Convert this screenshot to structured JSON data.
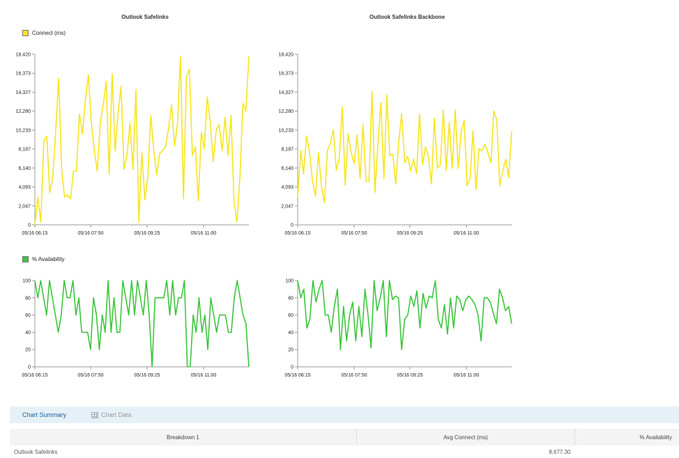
{
  "legend": {
    "connect": {
      "label": "Connect (ms)",
      "color": "#f7e51c"
    },
    "availability": {
      "label": "% Availability",
      "color": "#3cc53c"
    }
  },
  "tabs": {
    "summary": "Chart Summary",
    "data": "Chart Data",
    "data_icon": "table-grid-icon"
  },
  "summary_table": {
    "columns": [
      "Breakdown 1",
      "Avg Connect (ms)",
      "% Availability"
    ],
    "rows": [
      {
        "name": "Outlook Safelinks",
        "avg_connect": "8,677.30",
        "availability": ""
      }
    ]
  },
  "chart_data": [
    {
      "type": "line",
      "title": "Outlook Safelinks",
      "series": [
        {
          "name": "Connect (ms)",
          "color": "#f7e51c",
          "values": [
            0,
            3000,
            300,
            9000,
            9600,
            3500,
            5000,
            10000,
            15800,
            6000,
            3000,
            3200,
            2800,
            5800,
            5800,
            12000,
            9800,
            13500,
            16200,
            11000,
            8000,
            5800,
            11000,
            13000,
            15500,
            5500,
            16300,
            8000,
            12000,
            15000,
            6000,
            7500,
            11000,
            6000,
            14600,
            300,
            7800,
            2700,
            5200,
            11800,
            8000,
            5400,
            7700,
            8000,
            8500,
            10500,
            13000,
            8500,
            11000,
            18200,
            2800,
            16000,
            16800,
            7500,
            8400,
            2600,
            10000,
            8200,
            13800,
            11200,
            6800,
            10200,
            10800,
            8000,
            11600,
            7500,
            11800,
            2500,
            300,
            5200,
            13100,
            12300,
            18200
          ]
        }
      ],
      "x_ticks": [
        "05/16 06:15",
        "05/16 07:50",
        "05/16 09:25",
        "05/16 11:00"
      ],
      "y_ticks": [
        "0",
        "2,047",
        "4,093",
        "6,140",
        "8,187",
        "10,233",
        "12,280",
        "14,327",
        "16,373",
        "18,420"
      ],
      "ylim": [
        0,
        18420
      ],
      "grid": false,
      "legend": "top-left"
    },
    {
      "type": "line",
      "title": "Outlook Safelinks Backbone",
      "series": [
        {
          "name": "Connect (ms)",
          "color": "#f7e51c",
          "values": [
            3000,
            8000,
            5500,
            9600,
            7800,
            4700,
            3100,
            7800,
            4200,
            2400,
            8000,
            8800,
            10300,
            5900,
            7200,
            12700,
            4300,
            9800,
            7800,
            6600,
            9700,
            5000,
            10800,
            4700,
            4700,
            14400,
            3500,
            8800,
            13200,
            5000,
            14000,
            7500,
            7600,
            4400,
            9000,
            12000,
            6700,
            7400,
            5800,
            7100,
            5500,
            12000,
            6500,
            8400,
            7400,
            4400,
            11500,
            6100,
            6500,
            12400,
            5900,
            11100,
            6100,
            12400,
            6100,
            10000,
            11300,
            4200,
            5000,
            10200,
            3800,
            8200,
            8000,
            8700,
            7800,
            6700,
            12300,
            11300,
            4200,
            5800,
            7100,
            5100,
            10100
          ]
        }
      ],
      "x_ticks": [
        "05/16 06:15",
        "05/16 07:50",
        "05/16 09:25",
        "05/16 11:00"
      ],
      "y_ticks": [
        "0",
        "2,047",
        "4,093",
        "6,140",
        "8,187",
        "10,233",
        "12,280",
        "14,327",
        "16,373",
        "18,420"
      ],
      "ylim": [
        0,
        18420
      ],
      "grid": false
    },
    {
      "type": "line",
      "title": "",
      "series": [
        {
          "name": "% Availability",
          "color": "#3cc53c",
          "values": [
            100,
            80,
            100,
            80,
            60,
            100,
            80,
            60,
            40,
            60,
            100,
            80,
            80,
            100,
            60,
            80,
            40,
            40,
            40,
            20,
            80,
            60,
            20,
            60,
            40,
            100,
            40,
            80,
            40,
            40,
            100,
            80,
            60,
            100,
            60,
            100,
            80,
            60,
            100,
            60,
            0,
            80,
            80,
            80,
            80,
            100,
            60,
            100,
            60,
            80,
            80,
            100,
            0,
            0,
            60,
            40,
            80,
            40,
            60,
            20,
            80,
            60,
            40,
            60,
            60,
            60,
            40,
            40,
            80,
            100,
            80,
            60,
            50,
            0
          ]
        }
      ],
      "x_ticks": [
        "05/16 06:15",
        "05/16 07:50",
        "05/16 09:25",
        "05/16 11:00"
      ],
      "y_ticks": [
        "0",
        "20",
        "40",
        "60",
        "80",
        "100"
      ],
      "ylim": [
        0,
        100
      ],
      "grid": false,
      "legend": "top-left"
    },
    {
      "type": "line",
      "title": "",
      "series": [
        {
          "name": "% Availability",
          "color": "#3cc53c",
          "values": [
            100,
            80,
            90,
            45,
            55,
            100,
            75,
            90,
            100,
            60,
            60,
            40,
            70,
            90,
            20,
            70,
            30,
            60,
            75,
            30,
            70,
            35,
            90,
            60,
            22,
            100,
            65,
            80,
            100,
            35,
            100,
            78,
            82,
            80,
            20,
            55,
            60,
            82,
            70,
            88,
            45,
            85,
            68,
            82,
            80,
            100,
            55,
            45,
            72,
            38,
            80,
            45,
            82,
            78,
            65,
            78,
            82,
            78,
            72,
            60,
            30,
            80,
            80,
            75,
            62,
            50,
            90,
            80,
            65,
            70,
            50
          ]
        }
      ],
      "x_ticks": [
        "05/16 06:15",
        "05/16 07:50",
        "05/16 09:25",
        "05/16 11:00"
      ],
      "y_ticks": [
        "0",
        "20",
        "40",
        "60",
        "80",
        "100"
      ],
      "ylim": [
        0,
        100
      ],
      "grid": false
    }
  ]
}
